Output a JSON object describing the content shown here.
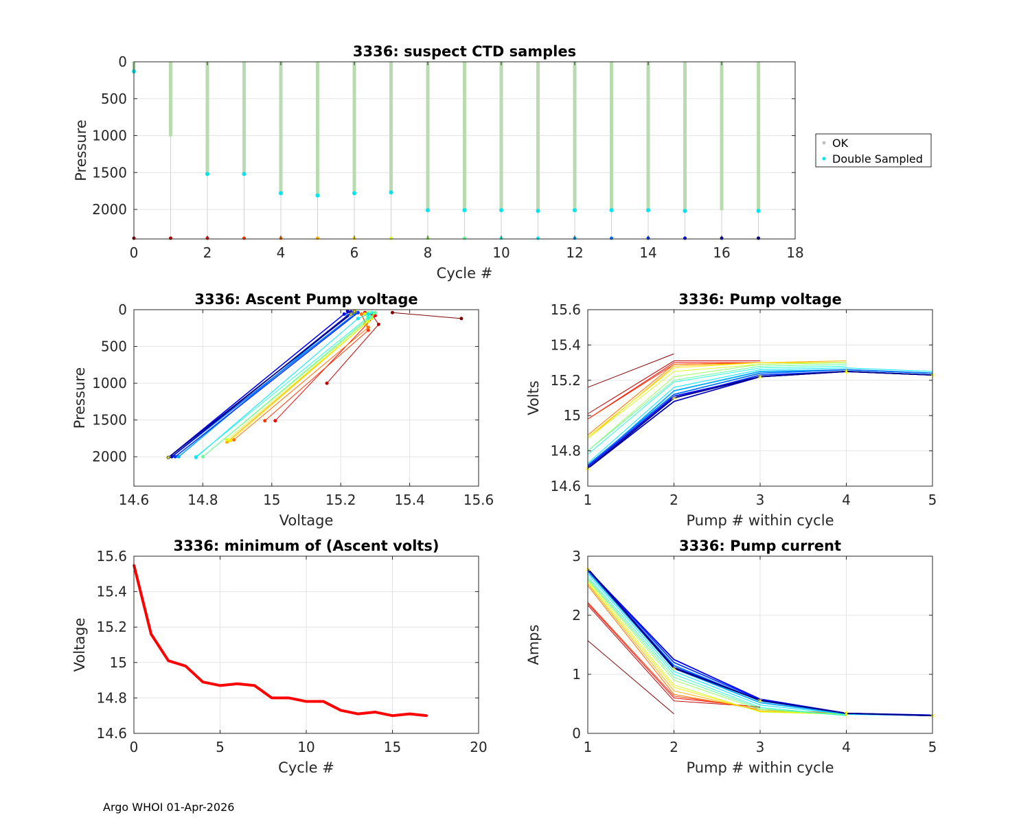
{
  "footer": "Argo WHOI 01-Apr-2026",
  "chart_data": [
    {
      "id": "ctd",
      "type": "scatter",
      "title": "3336: suspect CTD samples",
      "xlabel": "Cycle #",
      "ylabel": "Pressure",
      "xlim": [
        0,
        18
      ],
      "ylim": [
        2400,
        0
      ],
      "y_reversed": true,
      "xticks": [
        0,
        2,
        4,
        6,
        8,
        10,
        12,
        14,
        16,
        18
      ],
      "yticks": [
        0,
        500,
        1000,
        1500,
        2000
      ],
      "grid": true,
      "legend": {
        "position": "right",
        "entries": [
          {
            "name": "OK",
            "color": "#c0c0c0"
          },
          {
            "name": "Double Sampled",
            "color": "#00e5ee"
          }
        ]
      },
      "cycles": [
        0,
        1,
        2,
        3,
        4,
        5,
        6,
        7,
        8,
        9,
        10,
        11,
        12,
        13,
        14,
        15,
        16,
        17
      ],
      "max_pressure": [
        120,
        1010,
        1520,
        1520,
        1780,
        1810,
        1780,
        1770,
        2010,
        2010,
        2010,
        2020,
        2010,
        2010,
        2010,
        2020,
        2010,
        2020
      ],
      "double_sampled_pressure": [
        130,
        null,
        1520,
        1520,
        1780,
        1810,
        1780,
        1770,
        2010,
        2010,
        2010,
        2020,
        2010,
        2010,
        2010,
        2020,
        null,
        2020
      ],
      "bottom_marker_pressure": 2390
    },
    {
      "id": "ascent",
      "type": "line",
      "title": "3336: Ascent Pump voltage",
      "xlabel": "Voltage",
      "ylabel": "Pressure",
      "xlim": [
        14.6,
        15.6
      ],
      "ylim": [
        2400,
        0
      ],
      "y_reversed": true,
      "xticks": [
        14.6,
        14.8,
        15,
        15.2,
        15.4,
        15.6
      ],
      "yticks": [
        0,
        500,
        1000,
        1500,
        2000
      ],
      "grid": true,
      "series": [
        {
          "cycle": 0,
          "x": [
            15.55,
            15.35
          ],
          "y": [
            120,
            40
          ]
        },
        {
          "cycle": 1,
          "x": [
            15.16,
            15.31,
            15.29
          ],
          "y": [
            1000,
            200,
            60
          ]
        },
        {
          "cycle": 2,
          "x": [
            15.01,
            15.3,
            15.27
          ],
          "y": [
            1510,
            80,
            40
          ]
        },
        {
          "cycle": 3,
          "x": [
            14.98,
            15.28,
            15.26
          ],
          "y": [
            1510,
            280,
            60
          ]
        },
        {
          "cycle": 4,
          "x": [
            14.89,
            15.28,
            15.26
          ],
          "y": [
            1770,
            240,
            60
          ]
        },
        {
          "cycle": 5,
          "x": [
            14.87,
            15.27,
            15.28
          ],
          "y": [
            1800,
            200,
            60
          ]
        },
        {
          "cycle": 6,
          "x": [
            14.88,
            15.28,
            15.27
          ],
          "y": [
            1780,
            160,
            60
          ]
        },
        {
          "cycle": 7,
          "x": [
            14.87,
            15.29,
            15.3
          ],
          "y": [
            1770,
            120,
            40
          ]
        },
        {
          "cycle": 8,
          "x": [
            14.8,
            15.29,
            15.28
          ],
          "y": [
            2000,
            100,
            40
          ]
        },
        {
          "cycle": 9,
          "x": [
            14.8,
            15.28,
            15.3
          ],
          "y": [
            2000,
            120,
            40
          ]
        },
        {
          "cycle": 10,
          "x": [
            14.78,
            15.28,
            15.29
          ],
          "y": [
            2000,
            100,
            40
          ]
        },
        {
          "cycle": 11,
          "x": [
            14.78,
            15.25,
            15.28
          ],
          "y": [
            2010,
            120,
            60
          ]
        },
        {
          "cycle": 12,
          "x": [
            14.73,
            15.22,
            15.25
          ],
          "y": [
            2000,
            80,
            40
          ]
        },
        {
          "cycle": 13,
          "x": [
            14.71,
            15.24,
            15.25
          ],
          "y": [
            2000,
            60,
            40
          ]
        },
        {
          "cycle": 14,
          "x": [
            14.72,
            15.25,
            15.24
          ],
          "y": [
            2000,
            40,
            30
          ]
        },
        {
          "cycle": 15,
          "x": [
            14.7,
            15.21,
            15.23
          ],
          "y": [
            2010,
            60,
            30
          ]
        },
        {
          "cycle": 16,
          "x": [
            14.71,
            15.23,
            15.22
          ],
          "y": [
            2000,
            40,
            20
          ]
        },
        {
          "cycle": 17,
          "x": [
            14.7,
            15.23,
            15.24
          ],
          "y": [
            2010,
            60,
            20
          ]
        }
      ]
    },
    {
      "id": "pumpv",
      "type": "line",
      "title": "3336: Pump voltage",
      "xlabel": "Pump # within cycle",
      "ylabel": "Volts",
      "xlim": [
        1,
        5
      ],
      "ylim": [
        14.6,
        15.6
      ],
      "xticks": [
        1,
        2,
        3,
        4,
        5
      ],
      "yticks": [
        14.6,
        14.8,
        15,
        15.2,
        15.4,
        15.6
      ],
      "grid": true,
      "series": [
        {
          "cycle": 0,
          "values": [
            15.16,
            15.35
          ]
        },
        {
          "cycle": 1,
          "values": [
            15.01,
            15.31,
            15.31
          ]
        },
        {
          "cycle": 2,
          "values": [
            14.98,
            15.3,
            15.3
          ]
        },
        {
          "cycle": 3,
          "values": [
            14.98,
            15.29,
            15.3
          ]
        },
        {
          "cycle": 4,
          "values": [
            14.89,
            15.29,
            15.3,
            15.3
          ]
        },
        {
          "cycle": 5,
          "values": [
            14.87,
            15.28,
            15.3,
            15.31
          ]
        },
        {
          "cycle": 6,
          "values": [
            14.88,
            15.27,
            15.3,
            15.3
          ]
        },
        {
          "cycle": 7,
          "values": [
            14.87,
            15.25,
            15.29,
            15.3
          ]
        },
        {
          "cycle": 8,
          "values": [
            14.8,
            15.22,
            15.29,
            15.3
          ]
        },
        {
          "cycle": 9,
          "values": [
            14.8,
            15.2,
            15.28,
            15.29
          ]
        },
        {
          "cycle": 10,
          "values": [
            14.78,
            15.19,
            15.27,
            15.28
          ]
        },
        {
          "cycle": 11,
          "values": [
            14.73,
            15.16,
            15.26,
            15.27,
            15.25
          ]
        },
        {
          "cycle": 12,
          "values": [
            14.71,
            15.14,
            15.25,
            15.26,
            15.24
          ]
        },
        {
          "cycle": 13,
          "values": [
            14.72,
            15.12,
            15.24,
            15.26,
            15.24
          ]
        },
        {
          "cycle": 14,
          "values": [
            14.7,
            15.1,
            15.23,
            15.25,
            15.23
          ]
        },
        {
          "cycle": 15,
          "values": [
            14.71,
            15.11,
            15.22,
            15.25,
            15.23
          ]
        },
        {
          "cycle": 16,
          "values": [
            14.7,
            15.08,
            15.22,
            15.25,
            15.23
          ]
        },
        {
          "cycle": 17,
          "values": [
            14.7,
            15.1,
            15.22,
            15.25,
            15.23
          ]
        }
      ]
    },
    {
      "id": "minv",
      "type": "line",
      "title": "3336: minimum of (Ascent volts)",
      "xlabel": "Cycle #",
      "ylabel": "Voltage",
      "xlim": [
        0,
        20
      ],
      "ylim": [
        14.6,
        15.6
      ],
      "xticks": [
        0,
        5,
        10,
        15,
        20
      ],
      "yticks": [
        14.6,
        14.8,
        15,
        15.2,
        15.4,
        15.6
      ],
      "grid": true,
      "color": "#ff0000",
      "x": [
        0,
        1,
        2,
        3,
        4,
        5,
        6,
        7,
        8,
        9,
        10,
        11,
        12,
        13,
        14,
        15,
        16,
        17
      ],
      "y": [
        15.55,
        15.16,
        15.01,
        14.98,
        14.89,
        14.87,
        14.88,
        14.87,
        14.8,
        14.8,
        14.78,
        14.78,
        14.73,
        14.71,
        14.72,
        14.7,
        14.71,
        14.7
      ]
    },
    {
      "id": "pumpc",
      "type": "line",
      "title": "3336: Pump current",
      "xlabel": "Pump # within cycle",
      "ylabel": "Amps",
      "xlim": [
        1,
        5
      ],
      "ylim": [
        0,
        3
      ],
      "xticks": [
        1,
        2,
        3,
        4,
        5
      ],
      "yticks": [
        0,
        1,
        2,
        3
      ],
      "grid": true,
      "series": [
        {
          "cycle": 0,
          "values": [
            1.57,
            0.33
          ]
        },
        {
          "cycle": 1,
          "values": [
            2.17,
            0.55,
            0.45
          ]
        },
        {
          "cycle": 2,
          "values": [
            2.2,
            0.6,
            0.44
          ]
        },
        {
          "cycle": 3,
          "values": [
            2.22,
            0.63,
            0.43
          ]
        },
        {
          "cycle": 4,
          "values": [
            2.5,
            0.66,
            0.4,
            0.34
          ]
        },
        {
          "cycle": 5,
          "values": [
            2.53,
            0.72,
            0.38,
            0.33
          ]
        },
        {
          "cycle": 6,
          "values": [
            2.55,
            0.78,
            0.37,
            0.33
          ]
        },
        {
          "cycle": 7,
          "values": [
            2.58,
            0.82,
            0.36,
            0.32
          ]
        },
        {
          "cycle": 8,
          "values": [
            2.6,
            0.9,
            0.4,
            0.31
          ]
        },
        {
          "cycle": 9,
          "values": [
            2.62,
            0.95,
            0.42,
            0.3
          ]
        },
        {
          "cycle": 10,
          "values": [
            2.65,
            1.0,
            0.44,
            0.3
          ]
        },
        {
          "cycle": 11,
          "values": [
            2.7,
            1.05,
            0.48,
            0.32,
            0.3
          ]
        },
        {
          "cycle": 12,
          "values": [
            2.74,
            1.1,
            0.52,
            0.33,
            0.3
          ]
        },
        {
          "cycle": 13,
          "values": [
            2.76,
            1.15,
            0.55,
            0.34,
            0.3
          ]
        },
        {
          "cycle": 14,
          "values": [
            2.78,
            1.2,
            0.57,
            0.34,
            0.3
          ]
        },
        {
          "cycle": 15,
          "values": [
            2.77,
            1.25,
            0.58,
            0.34,
            0.31
          ]
        },
        {
          "cycle": 16,
          "values": [
            2.79,
            1.12,
            0.56,
            0.34,
            0.3
          ]
        },
        {
          "cycle": 17,
          "values": [
            2.78,
            1.1,
            0.56,
            0.34,
            0.3
          ]
        }
      ]
    }
  ]
}
